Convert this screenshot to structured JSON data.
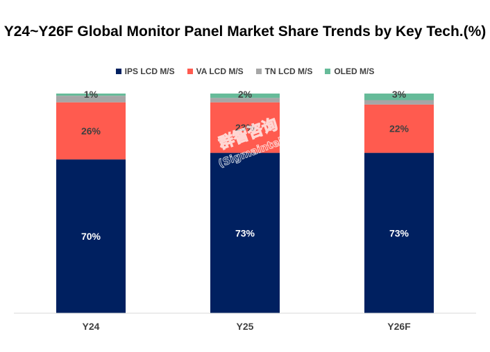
{
  "chart_data": {
    "type": "bar",
    "stacked": true,
    "title": "Y24~Y26F Global Monitor Panel Market Share Trends by Key Tech.(%)",
    "categories": [
      "Y24",
      "Y25",
      "Y26F"
    ],
    "series": [
      {
        "name": "IPS LCD M/S",
        "color": "#002060",
        "label_color": "#ffffff",
        "values": [
          70,
          73,
          73
        ],
        "labels": [
          "70%",
          "73%",
          "73%"
        ]
      },
      {
        "name": "VA LCD M/S",
        "color": "#ff5b4f",
        "label_color": "#404040",
        "values": [
          26,
          23,
          22
        ],
        "labels": [
          "26%",
          "23%",
          "22%"
        ]
      },
      {
        "name": "TN LCD M/S",
        "color": "#a6a6a6",
        "label_color": "#404040",
        "values": [
          3,
          2,
          2
        ],
        "labels": [
          "",
          "",
          ""
        ]
      },
      {
        "name": "OLED M/S",
        "color": "#66bb99",
        "label_color": "#404040",
        "values": [
          1,
          2,
          3
        ],
        "labels": [
          "1%",
          "2%",
          "3%"
        ]
      }
    ],
    "ylim": [
      0,
      100
    ],
    "grid": false,
    "legend_position": "top"
  },
  "watermark": {
    "text": "群智咨询",
    "subtext": "(Sigmaintell)"
  }
}
